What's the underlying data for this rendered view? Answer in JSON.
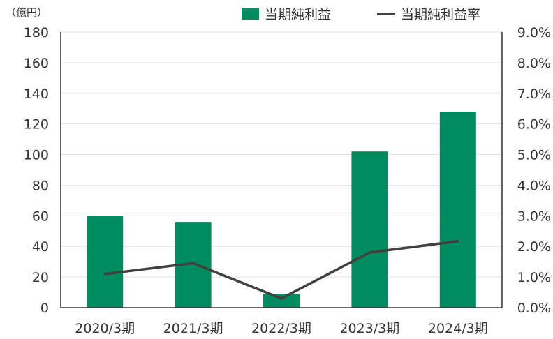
{
  "chart_data": {
    "type": "bar",
    "y_unit_label": "（億円）",
    "categories": [
      "2020/3期",
      "2021/3期",
      "2022/3期",
      "2023/3期",
      "2024/3期"
    ],
    "series": [
      {
        "name": "当期純利益",
        "type": "bar",
        "axis": "left",
        "color": "#008C5F",
        "values": [
          60,
          56,
          9,
          102,
          128
        ]
      },
      {
        "name": "当期純利益率",
        "type": "line",
        "axis": "right",
        "color": "#404040",
        "values": [
          1.1,
          1.45,
          0.3,
          1.8,
          2.17
        ]
      }
    ],
    "left_axis": {
      "min": 0,
      "max": 180,
      "step": 20,
      "ticks": [
        "0",
        "20",
        "40",
        "60",
        "80",
        "100",
        "120",
        "140",
        "160",
        "180"
      ]
    },
    "right_axis": {
      "min": 0,
      "max": 9,
      "step": 1,
      "ticks": [
        "0.0%",
        "1.0%",
        "2.0%",
        "3.0%",
        "4.0%",
        "5.0%",
        "6.0%",
        "7.0%",
        "8.0%",
        "9.0%"
      ]
    },
    "grid": true,
    "legend_position": "top-right"
  }
}
